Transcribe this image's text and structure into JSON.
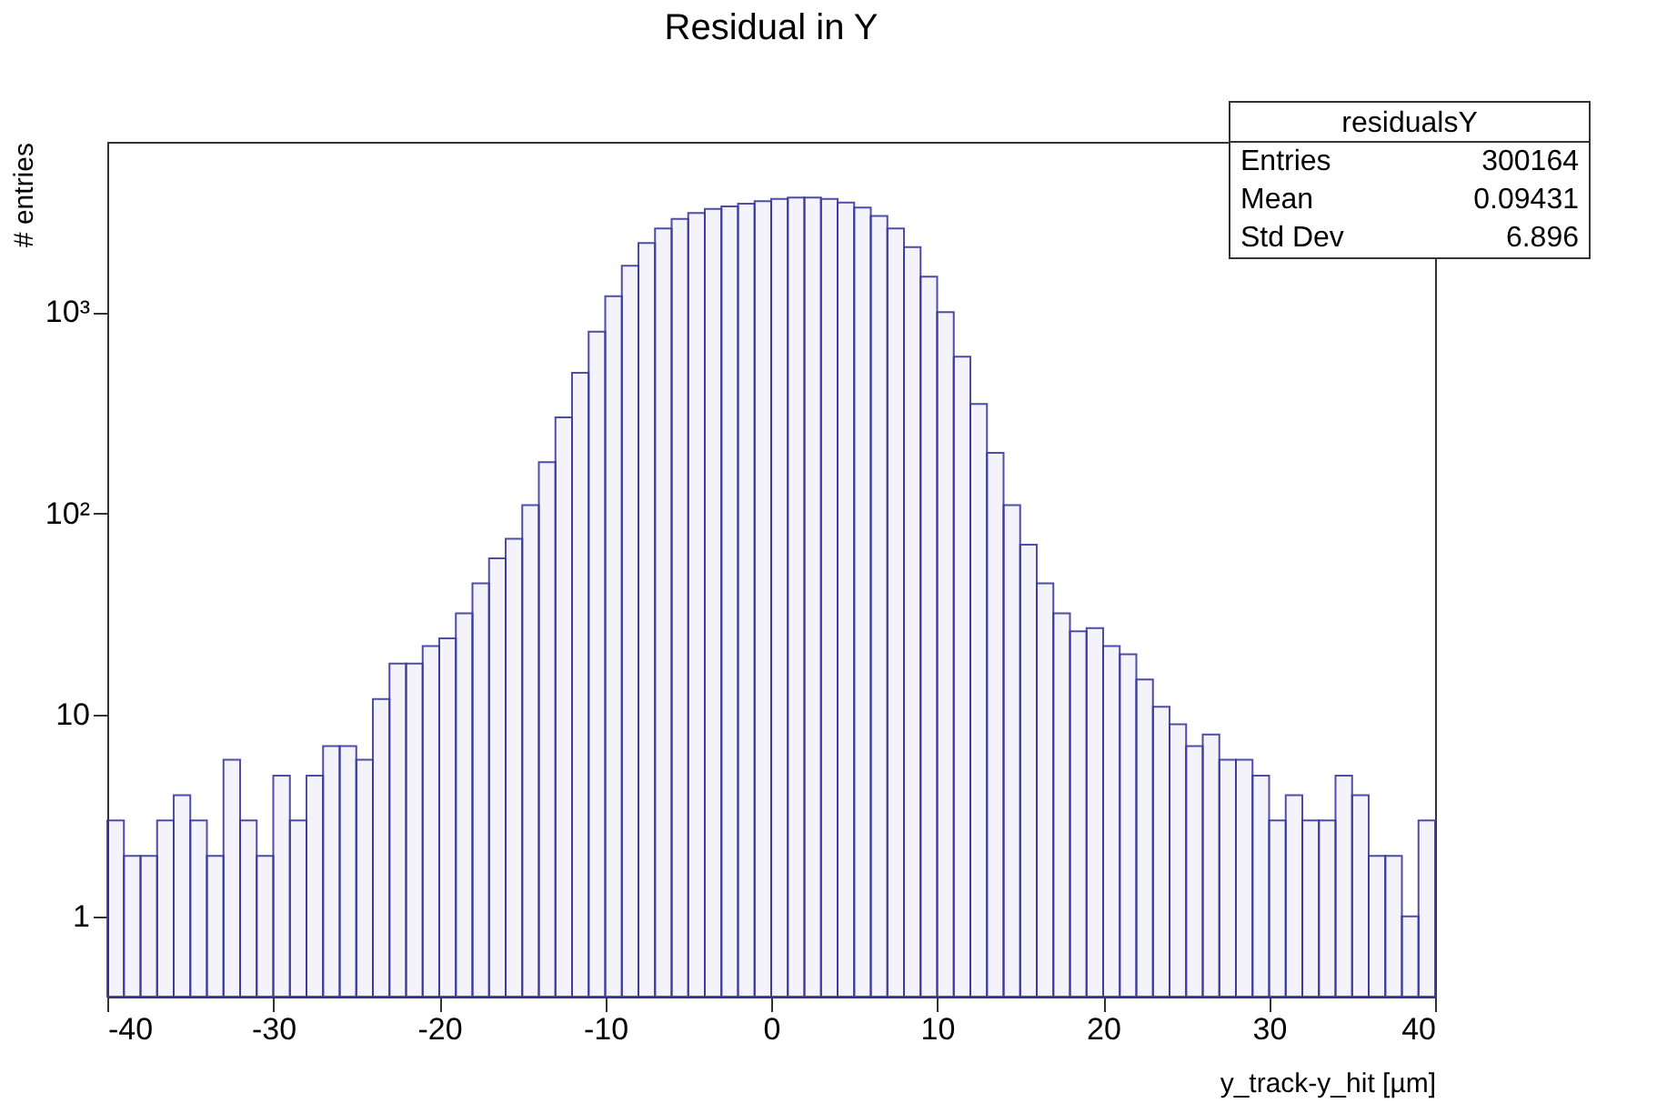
{
  "chart_data": {
    "type": "histogram",
    "title": "Residual in Y",
    "xlabel": "y_track-y_hit [µm]",
    "ylabel": "# entries",
    "bins": [
      -40,
      -39,
      -38,
      -37,
      -36,
      -35,
      -34,
      -33,
      -32,
      -31,
      -30,
      -29,
      -28,
      -27,
      -26,
      -25,
      -24,
      -23,
      -22,
      -21,
      -20,
      -19,
      -18,
      -17,
      -16,
      -15,
      -14,
      -13,
      -12,
      -11,
      -10,
      -9,
      -8,
      -7,
      -6,
      -5,
      -4,
      -3,
      -2,
      -1,
      0,
      1,
      2,
      3,
      4,
      5,
      6,
      7,
      8,
      9,
      10,
      11,
      12,
      13,
      14,
      15,
      16,
      17,
      18,
      19,
      20,
      21,
      22,
      23,
      24,
      25,
      26,
      27,
      28,
      29,
      30,
      31,
      32,
      33,
      34,
      35,
      36,
      37,
      38,
      39,
      40
    ],
    "values": [
      3,
      2,
      2,
      3,
      4,
      3,
      2,
      6,
      3,
      2,
      5,
      3,
      5,
      7,
      7,
      6,
      12,
      18,
      18,
      22,
      24,
      32,
      45,
      60,
      75,
      110,
      180,
      300,
      500,
      800,
      1200,
      1700,
      2200,
      2600,
      2900,
      3100,
      3250,
      3350,
      3450,
      3550,
      3650,
      3700,
      3700,
      3650,
      3500,
      3300,
      3000,
      2600,
      2100,
      1500,
      1000,
      600,
      350,
      200,
      110,
      70,
      45,
      32,
      26,
      27,
      22,
      20,
      15,
      11,
      9,
      7,
      8,
      6,
      6,
      5,
      3,
      4,
      3,
      3,
      5,
      4,
      2,
      2,
      1,
      3
    ],
    "color": "#3b3b9e",
    "log": true,
    "ylim": [
      0.4,
      7000
    ],
    "yticks": [
      1,
      10,
      {
        "value": 100,
        "label": "10²"
      },
      {
        "value": 1000,
        "label": "10³"
      }
    ],
    "xlim": [
      -40,
      40
    ],
    "xticks": [
      -40,
      -30,
      -20,
      -10,
      0,
      10,
      20,
      30,
      40
    ],
    "grid": false,
    "annotations": [
      "residualsY",
      "Entries 300164",
      "Mean 0.09431",
      "Std Dev 6.896"
    ]
  }
}
